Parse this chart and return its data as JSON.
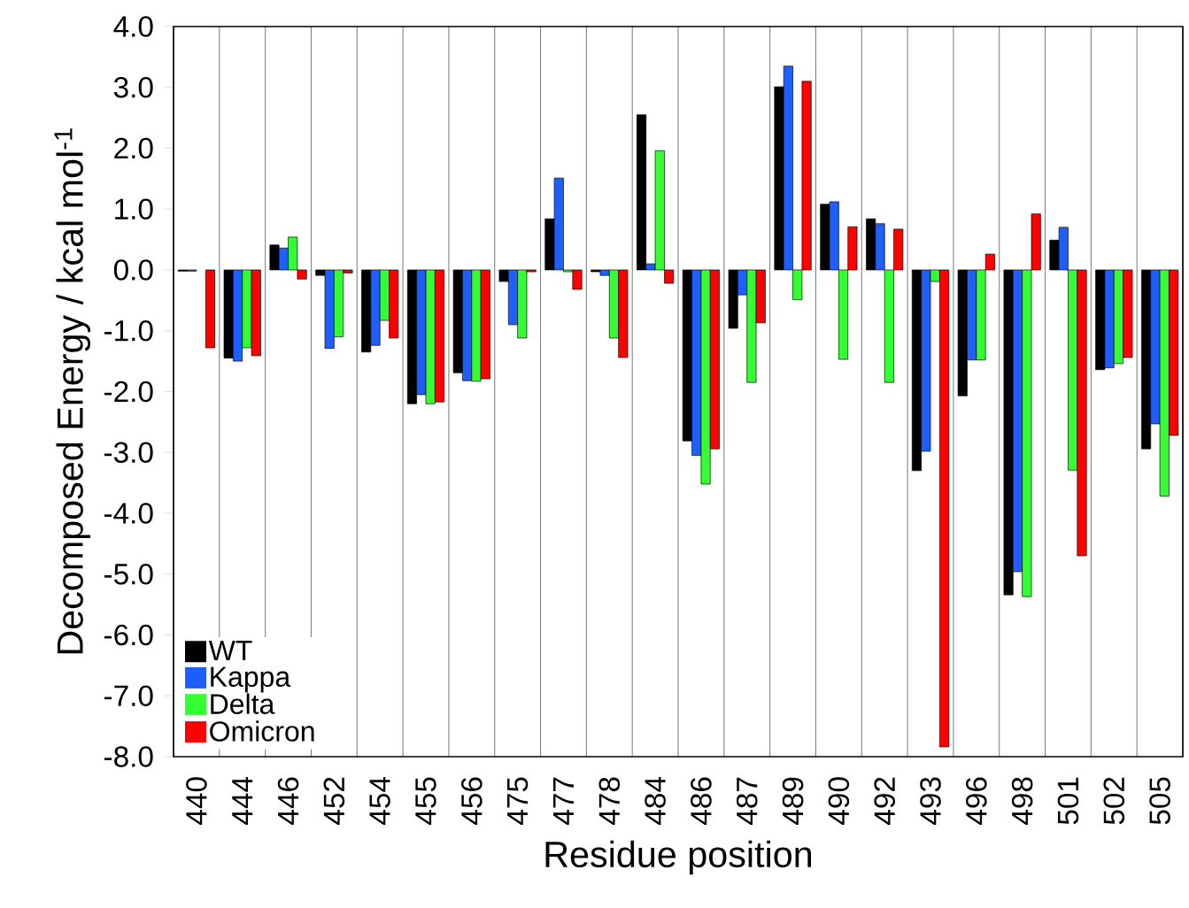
{
  "chart_data": {
    "type": "bar",
    "xlabel": "Residue position",
    "ylabel": "Decomposed Energy / kcal mol$^{-1}$",
    "categories": [
      "440",
      "444",
      "446",
      "452",
      "454",
      "455",
      "456",
      "475",
      "477",
      "478",
      "484",
      "486",
      "487",
      "489",
      "490",
      "492",
      "493",
      "496",
      "498",
      "501",
      "502",
      "505"
    ],
    "series": [
      {
        "name": "WT",
        "color": "#000000",
        "values": [
          -0.02,
          -1.45,
          0.41,
          -0.09,
          -1.35,
          -2.2,
          -1.69,
          -0.19,
          0.84,
          -0.03,
          2.55,
          -2.81,
          -0.96,
          3.01,
          1.08,
          0.84,
          -3.3,
          -2.07,
          -5.34,
          0.49,
          -1.64,
          -2.94
        ]
      },
      {
        "name": "Kappa",
        "color": "#1f5fff",
        "values": [
          -0.02,
          -1.5,
          0.36,
          -1.29,
          -1.24,
          -2.05,
          -1.82,
          -0.9,
          1.51,
          -0.09,
          0.1,
          -3.05,
          -0.41,
          3.35,
          1.12,
          0.76,
          -2.98,
          -1.48,
          -4.96,
          0.7,
          -1.61,
          -2.53
        ]
      },
      {
        "name": "Delta",
        "color": "#33ff33",
        "values": [
          null,
          -1.28,
          0.54,
          -1.1,
          -0.83,
          -2.2,
          -1.83,
          -1.12,
          -0.03,
          -1.12,
          1.96,
          -3.52,
          -1.85,
          -0.49,
          -1.47,
          -1.85,
          -0.19,
          -1.48,
          -5.37,
          -3.29,
          -1.54,
          -3.72
        ]
      },
      {
        "name": "Omicron",
        "color": "#ff0000",
        "values": [
          -1.28,
          -1.41,
          -0.15,
          -0.05,
          -1.12,
          -2.17,
          -1.79,
          -0.03,
          -0.32,
          -1.44,
          -0.22,
          -2.94,
          -0.87,
          3.1,
          0.71,
          0.67,
          -7.84,
          0.26,
          0.92,
          -4.7,
          -1.44,
          -2.72
        ]
      }
    ],
    "ylim": [
      -8,
      4
    ],
    "yticks": [
      {
        "value": -8,
        "label": "-8.0"
      },
      {
        "value": -7,
        "label": "-7.0"
      },
      {
        "value": -6,
        "label": "-6.0"
      },
      {
        "value": -5,
        "label": "-5.0"
      },
      {
        "value": -4,
        "label": "-4.0"
      },
      {
        "value": -3,
        "label": "-3.0"
      },
      {
        "value": -2,
        "label": "-2.0"
      },
      {
        "value": -1,
        "label": "-1.0"
      },
      {
        "value": 0,
        "label": "0.0"
      },
      {
        "value": 1,
        "label": "1.0"
      },
      {
        "value": 2,
        "label": "2.0"
      },
      {
        "value": 3,
        "label": "3.0"
      },
      {
        "value": 4,
        "label": "4.0"
      }
    ],
    "grid": "x",
    "legend": "bottom left"
  }
}
